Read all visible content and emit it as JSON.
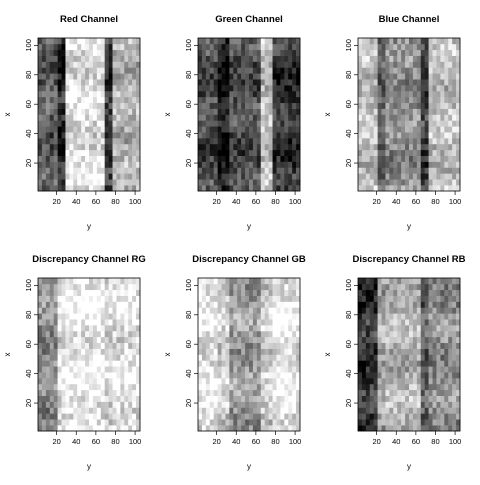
{
  "chart_data": [
    {
      "type": "heatmap",
      "title": "Red Channel",
      "xlabel": "y",
      "ylabel": "x",
      "xlim": [
        1,
        105
      ],
      "ylim": [
        1,
        105
      ],
      "x_ticks": [
        20,
        40,
        60,
        80,
        100
      ],
      "y_ticks": [
        20,
        40,
        60,
        80,
        100
      ],
      "colormap": "grayscale",
      "bands": [
        {
          "from": 1,
          "to": 18,
          "level": 0.35
        },
        {
          "from": 18,
          "to": 26,
          "level": 0.15
        },
        {
          "from": 26,
          "to": 66,
          "level": 0.88
        },
        {
          "from": 66,
          "to": 74,
          "level": 0.2
        },
        {
          "from": 74,
          "to": 105,
          "level": 0.7
        }
      ]
    },
    {
      "type": "heatmap",
      "title": "Green Channel",
      "xlabel": "y",
      "ylabel": "x",
      "xlim": [
        1,
        105
      ],
      "ylim": [
        1,
        105
      ],
      "x_ticks": [
        20,
        40,
        60,
        80,
        100
      ],
      "y_ticks": [
        20,
        40,
        60,
        80,
        100
      ],
      "colormap": "grayscale",
      "bands": [
        {
          "from": 1,
          "to": 18,
          "level": 0.3
        },
        {
          "from": 18,
          "to": 32,
          "level": 0.08
        },
        {
          "from": 32,
          "to": 64,
          "level": 0.3
        },
        {
          "from": 64,
          "to": 74,
          "level": 0.75
        },
        {
          "from": 74,
          "to": 105,
          "level": 0.2
        }
      ]
    },
    {
      "type": "heatmap",
      "title": "Blue Channel",
      "xlabel": "y",
      "ylabel": "x",
      "xlim": [
        1,
        105
      ],
      "ylim": [
        1,
        105
      ],
      "x_ticks": [
        20,
        40,
        60,
        80,
        100
      ],
      "y_ticks": [
        20,
        40,
        60,
        80,
        100
      ],
      "colormap": "grayscale",
      "bands": [
        {
          "from": 1,
          "to": 18,
          "level": 0.75
        },
        {
          "from": 18,
          "to": 28,
          "level": 0.4
        },
        {
          "from": 28,
          "to": 64,
          "level": 0.55
        },
        {
          "from": 64,
          "to": 72,
          "level": 0.25
        },
        {
          "from": 72,
          "to": 105,
          "level": 0.75
        }
      ]
    },
    {
      "type": "heatmap",
      "title": "Discrepancy Channel RG",
      "xlabel": "y",
      "ylabel": "x",
      "xlim": [
        1,
        105
      ],
      "ylim": [
        1,
        105
      ],
      "x_ticks": [
        20,
        40,
        60,
        80,
        100
      ],
      "y_ticks": [
        20,
        40,
        60,
        80,
        100
      ],
      "colormap": "grayscale",
      "bands": [
        {
          "from": 1,
          "to": 18,
          "level": 0.55
        },
        {
          "from": 18,
          "to": 28,
          "level": 0.9
        },
        {
          "from": 28,
          "to": 66,
          "level": 0.95
        },
        {
          "from": 66,
          "to": 74,
          "level": 0.85
        },
        {
          "from": 74,
          "to": 105,
          "level": 0.9
        }
      ]
    },
    {
      "type": "heatmap",
      "title": "Discrepancy Channel GB",
      "xlabel": "y",
      "ylabel": "x",
      "xlim": [
        1,
        105
      ],
      "ylim": [
        1,
        105
      ],
      "x_ticks": [
        20,
        40,
        60,
        80,
        100
      ],
      "y_ticks": [
        20,
        40,
        60,
        80,
        100
      ],
      "colormap": "grayscale",
      "bands": [
        {
          "from": 1,
          "to": 18,
          "level": 0.92
        },
        {
          "from": 18,
          "to": 30,
          "level": 0.82
        },
        {
          "from": 30,
          "to": 64,
          "level": 0.6
        },
        {
          "from": 64,
          "to": 74,
          "level": 0.82
        },
        {
          "from": 74,
          "to": 105,
          "level": 0.92
        }
      ]
    },
    {
      "type": "heatmap",
      "title": "Discrepancy Channel RB",
      "xlabel": "y",
      "ylabel": "x",
      "xlim": [
        1,
        105
      ],
      "ylim": [
        1,
        105
      ],
      "x_ticks": [
        20,
        40,
        60,
        80,
        100
      ],
      "y_ticks": [
        20,
        40,
        60,
        80,
        100
      ],
      "colormap": "grayscale",
      "bands": [
        {
          "from": 1,
          "to": 18,
          "level": 0.2
        },
        {
          "from": 18,
          "to": 28,
          "level": 0.65
        },
        {
          "from": 28,
          "to": 64,
          "level": 0.7
        },
        {
          "from": 64,
          "to": 72,
          "level": 0.35
        },
        {
          "from": 72,
          "to": 105,
          "level": 0.55
        }
      ]
    }
  ]
}
